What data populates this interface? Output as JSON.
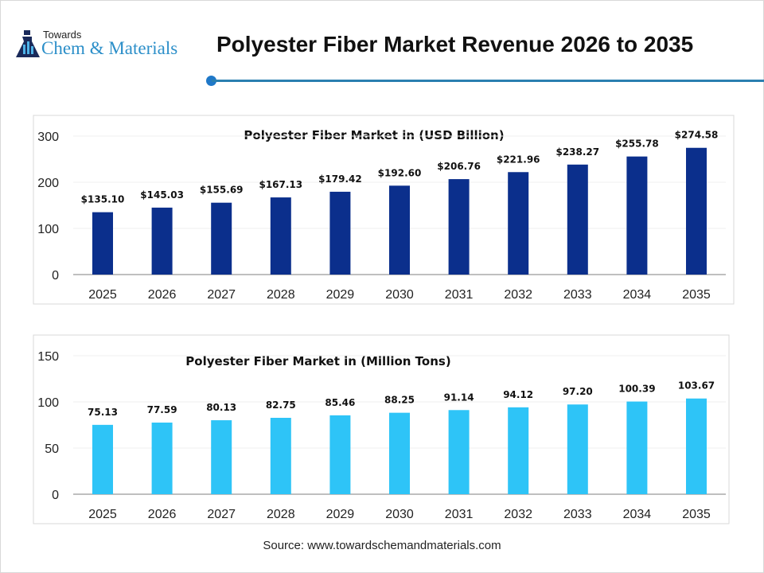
{
  "header": {
    "logo_small": "Towards",
    "logo_big": "Chem & Materials",
    "title": "Polyester Fiber Market Revenue 2026 to 2035",
    "accent_color": "#2a7fb0"
  },
  "chart_data": [
    {
      "type": "bar",
      "title": "Polyester Fiber Market in (USD Billion)",
      "categories": [
        "2025",
        "2026",
        "2027",
        "2028",
        "2029",
        "2030",
        "2031",
        "2032",
        "2033",
        "2034",
        "2035"
      ],
      "values": [
        135.1,
        145.03,
        155.69,
        167.13,
        179.42,
        192.6,
        206.76,
        221.96,
        238.27,
        255.78,
        274.58
      ],
      "data_labels": [
        "$135.10",
        "$145.03",
        "$155.69",
        "$167.13",
        "$179.42",
        "$192.60",
        "$206.76",
        "$221.96",
        "$238.27",
        "$255.78",
        "$274.58"
      ],
      "yticks": [
        "0",
        "100",
        "200",
        "300"
      ],
      "ylim": [
        0,
        300
      ],
      "grid": true,
      "color": "#0b2f8c"
    },
    {
      "type": "bar",
      "title": "Polyester Fiber Market in (Million Tons)",
      "categories": [
        "2025",
        "2026",
        "2027",
        "2028",
        "2029",
        "2030",
        "2031",
        "2032",
        "2033",
        "2034",
        "2035"
      ],
      "values": [
        75.13,
        77.59,
        80.13,
        82.75,
        85.46,
        88.25,
        91.14,
        94.12,
        97.2,
        100.39,
        103.67
      ],
      "data_labels": [
        "75.13",
        "77.59",
        "80.13",
        "82.75",
        "85.46",
        "88.25",
        "91.14",
        "94.12",
        "97.20",
        "100.39",
        "103.67"
      ],
      "yticks": [
        "0",
        "50",
        "100",
        "150"
      ],
      "ylim": [
        0,
        150
      ],
      "grid": true,
      "color": "#2ec4f7"
    }
  ],
  "footer": {
    "source": "Source: www.towardschemandmaterials.com"
  }
}
